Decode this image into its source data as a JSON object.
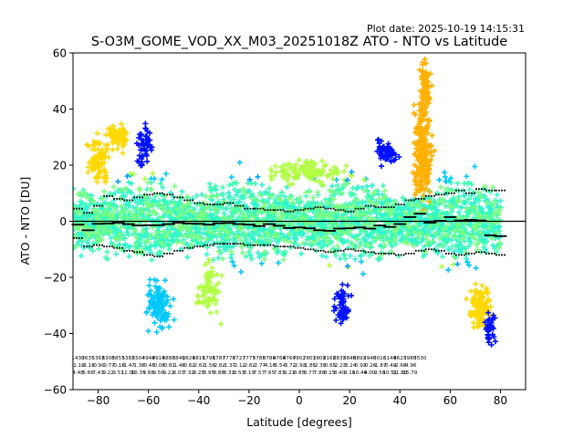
{
  "chart_data": {
    "type": "scatter",
    "title": "S-O3M_GOME_VOD_XX_M03_20251018Z ATO - NTO vs Latitude",
    "subtitle": "Plot date: 2025-10-19 14:15:31",
    "xlabel": "Latitude [degrees]",
    "ylabel": "ATO - NTO [DU]",
    "xlim": [
      -90,
      90
    ],
    "ylim": [
      -60,
      60
    ],
    "xticks": [
      -80,
      -60,
      -40,
      -20,
      0,
      20,
      40,
      60,
      80
    ],
    "yticks": [
      -60,
      -40,
      -20,
      0,
      20,
      40,
      60
    ],
    "grid": false,
    "legend": "none",
    "reference_line_y": 0,
    "marker_colors": [
      "#00c8ff",
      "#39ffb0",
      "#2ef5d0",
      "#b0ff40",
      "#ffd800",
      "#ffb000",
      "#0010ff",
      "#00a0ff",
      "#7aff80"
    ],
    "series": [
      {
        "name": "",
        "style": "black dash markers",
        "x": [
          -88,
          -84,
          -80,
          -76,
          -72,
          -68,
          -64,
          -60,
          -56,
          -52,
          -48,
          -44,
          -40,
          -36,
          -32,
          -28,
          -24,
          -20,
          -16,
          -12,
          -8,
          -4,
          0,
          4,
          8,
          12,
          16,
          20,
          24,
          28,
          32,
          36,
          40,
          44,
          48,
          52,
          56,
          60,
          64,
          68,
          72,
          76,
          80
        ],
        "values": [
          -1.2,
          -3.2,
          -0.9,
          -0.8,
          -0.5,
          -1.0,
          -1.5,
          -1.4,
          -1.4,
          -1.0,
          -0.5,
          -0.8,
          -0.9,
          -1.2,
          -0.7,
          -0.6,
          -1.0,
          -1.2,
          -1.7,
          -1.0,
          -1.6,
          -2.4,
          -2.2,
          -2.5,
          -3.2,
          -3.4,
          -2.6,
          -2.5,
          -2.2,
          -2.6,
          -1.5,
          -2.0,
          -1.0,
          1.5,
          2.7,
          -0.5,
          0.2,
          1.5,
          0.3,
          0.5,
          0.3,
          -5.0,
          -5.3
        ]
      },
      {
        "name": "",
        "style": "black dotted upper envelope",
        "x": [
          -88,
          -84,
          -80,
          -76,
          -72,
          -68,
          -64,
          -60,
          -56,
          -52,
          -48,
          -44,
          -40,
          -36,
          -32,
          -28,
          -24,
          -20,
          -16,
          -12,
          -8,
          -4,
          0,
          4,
          8,
          12,
          16,
          20,
          24,
          28,
          32,
          36,
          40,
          44,
          48,
          52,
          56,
          60,
          64,
          68,
          72,
          76,
          80
        ],
        "values": [
          4.5,
          3.0,
          5.5,
          9.0,
          8.0,
          7.5,
          8.5,
          9.5,
          10.0,
          9.5,
          8.5,
          7.5,
          6.5,
          6.0,
          6.0,
          6.5,
          5.5,
          4.5,
          4.5,
          4.0,
          4.0,
          3.5,
          4.0,
          4.5,
          5.0,
          4.5,
          4.0,
          3.5,
          4.5,
          5.5,
          5.0,
          5.0,
          6.0,
          7.5,
          8.0,
          9.0,
          9.5,
          10.0,
          11.0,
          10.0,
          11.5,
          11.0,
          11.0
        ]
      },
      {
        "name": "",
        "style": "black dotted lower envelope",
        "x": [
          -88,
          -84,
          -80,
          -76,
          -72,
          -68,
          -64,
          -60,
          -56,
          -52,
          -48,
          -44,
          -40,
          -36,
          -32,
          -28,
          -24,
          -20,
          -16,
          -12,
          -8,
          -4,
          0,
          4,
          8,
          12,
          16,
          20,
          24,
          28,
          32,
          36,
          40,
          44,
          48,
          52,
          56,
          60,
          64,
          68,
          72,
          76,
          80
        ],
        "values": [
          -6.0,
          -9.0,
          -8.5,
          -9.0,
          -9.5,
          -10.5,
          -11.0,
          -12.0,
          -12.5,
          -11.5,
          -10.5,
          -9.5,
          -9.0,
          -8.5,
          -8.0,
          -8.0,
          -8.0,
          -8.5,
          -8.5,
          -8.5,
          -9.0,
          -9.0,
          -9.5,
          -10.0,
          -10.5,
          -11.0,
          -10.5,
          -10.0,
          -10.5,
          -11.0,
          -11.5,
          -11.5,
          -12.0,
          -11.5,
          -10.5,
          -10.0,
          -10.5,
          -11.5,
          -12.0,
          -11.5,
          -11.0,
          -11.5,
          -12.0
        ]
      }
    ],
    "stats_table": {
      "x": [
        -88,
        -84,
        -80,
        -76,
        -72,
        -68,
        -64,
        -60,
        -56,
        -52,
        -48,
        -44,
        -40,
        -36,
        -32,
        -28,
        -24,
        -20,
        -16,
        -12,
        -8,
        -4,
        0,
        4,
        8,
        12,
        16,
        20,
        24,
        28,
        32,
        36,
        40,
        44,
        48,
        52,
        56,
        60,
        64,
        68,
        72,
        76,
        80
      ],
      "rows": [
        [
          "1430",
          "3635",
          "5363",
          "6308",
          "5851",
          "5382",
          "5504",
          "4948",
          "4916",
          "4888",
          "3846",
          "2824",
          "3816",
          "1798",
          "1787",
          "7776",
          "7727",
          "7777",
          "5788",
          "5789",
          "4764",
          "8764",
          "7802",
          "7801",
          "2801",
          "8162",
          "6832",
          "5840",
          "6893",
          "2946",
          "0016",
          "5144",
          "8623",
          "5980",
          "3530",
          "",
          "",
          "",
          "",
          "",
          "",
          "",
          ""
        ],
        [
          "-1.19",
          "-3.18",
          "-0.90",
          "-0.77",
          "-0.18",
          "-1.47",
          "-1.36",
          "-0.45",
          "-0.08",
          "-0.81",
          "-1.48",
          "-0.62",
          "-2.62",
          "-1.56",
          "-2.82",
          "-1.37",
          "-2.12",
          "-2.62",
          "-2.77",
          "-4.16",
          "-5.54",
          "-3.72",
          "-2.93",
          "-1.85",
          "-2.35",
          "-0.65",
          "-2.23",
          "-3.24",
          "-0.93",
          "-0.26",
          "-1.87",
          "-0.49",
          "-2.68",
          "-4.96",
          "",
          "",
          "",
          "",
          "",
          "",
          "",
          "",
          ""
        ],
        [
          "4.48",
          "5.66",
          "7.43",
          "9.22",
          "9.51",
          "11.00",
          "10.35",
          "9.88",
          "9.56",
          "9.22",
          "8.03",
          "7.32",
          "8.25",
          "8.95",
          "8.86",
          "8.31",
          "8.53",
          "8.19",
          "7.57",
          "7.65",
          "7.83",
          "9.21",
          "8.85",
          "8.77",
          "7.88",
          "8.15",
          "8.40",
          "9.16",
          "10.44",
          "9.00",
          "9.58",
          "10.51",
          "11.80",
          "15.79",
          "",
          "",
          "",
          "",
          "",
          "",
          "",
          "",
          ""
        ]
      ]
    }
  }
}
